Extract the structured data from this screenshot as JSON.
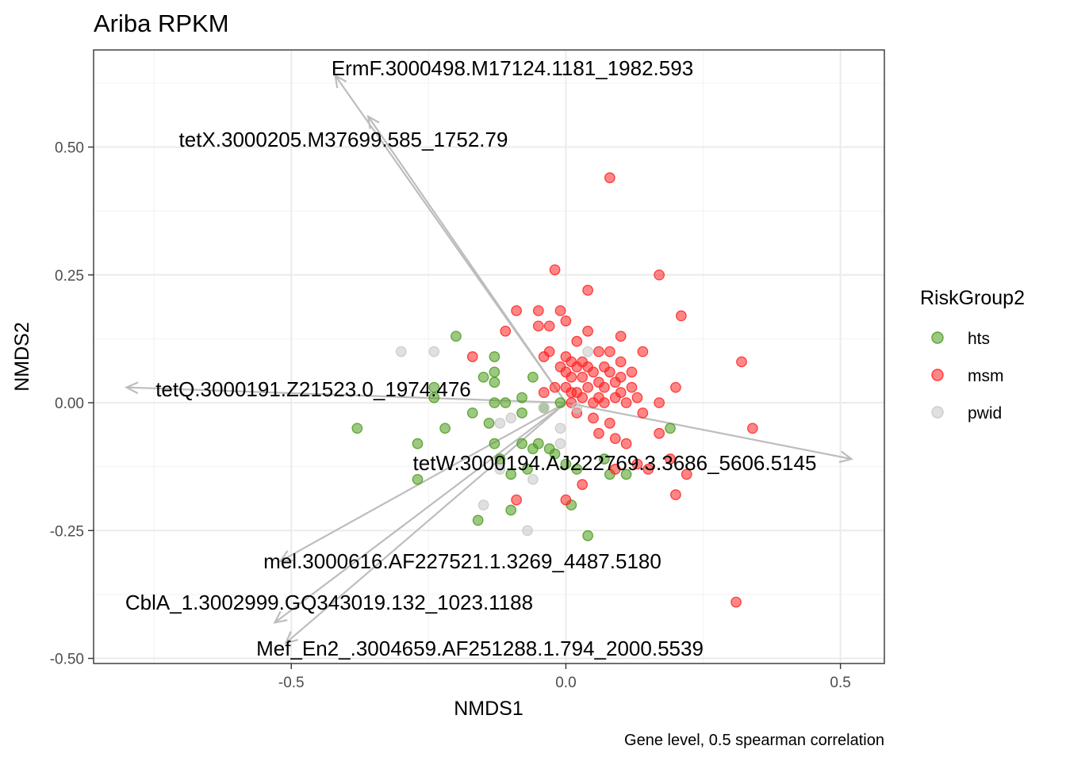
{
  "chart_data": {
    "type": "scatter",
    "title": "Ariba RPKM",
    "caption": "Gene level, 0.5 spearman correlation",
    "xlabel": "NMDS1",
    "ylabel": "NMDS2",
    "xlim": [
      -0.86,
      0.58
    ],
    "ylim": [
      -0.51,
      0.69
    ],
    "xticks": [
      -0.5,
      0.0,
      0.5
    ],
    "xtick_labels": [
      "-0.5",
      "0.0",
      "0.5"
    ],
    "yticks": [
      -0.5,
      -0.25,
      0.0,
      0.25,
      0.5
    ],
    "ytick_labels": [
      "-0.50",
      "-0.25",
      "0.00",
      "0.25",
      "0.50"
    ],
    "grid": true,
    "legend": {
      "title": "RiskGroup2",
      "position": "right",
      "entries": [
        {
          "label": "hts",
          "color": "#4a9a1b"
        },
        {
          "label": "msm",
          "color": "#ff2222"
        },
        {
          "label": "pwid",
          "color": "#c7c7c7"
        }
      ]
    },
    "series": [
      {
        "name": "hts",
        "color": "#4a9a1b",
        "points": [
          [
            -0.38,
            -0.05
          ],
          [
            -0.27,
            -0.15
          ],
          [
            -0.27,
            -0.08
          ],
          [
            -0.24,
            0.01
          ],
          [
            -0.24,
            0.03
          ],
          [
            -0.22,
            -0.05
          ],
          [
            -0.2,
            0.13
          ],
          [
            -0.17,
            -0.02
          ],
          [
            -0.16,
            -0.23
          ],
          [
            -0.15,
            0.05
          ],
          [
            -0.14,
            -0.04
          ],
          [
            -0.13,
            0.09
          ],
          [
            -0.13,
            0.06
          ],
          [
            -0.13,
            0.04
          ],
          [
            -0.13,
            0.0
          ],
          [
            -0.13,
            -0.08
          ],
          [
            -0.12,
            -0.11
          ],
          [
            -0.11,
            0.0
          ],
          [
            -0.1,
            -0.14
          ],
          [
            -0.1,
            -0.21
          ],
          [
            -0.08,
            0.01
          ],
          [
            -0.08,
            -0.02
          ],
          [
            -0.08,
            -0.08
          ],
          [
            -0.07,
            -0.13
          ],
          [
            -0.06,
            0.05
          ],
          [
            -0.06,
            -0.09
          ],
          [
            -0.05,
            -0.08
          ],
          [
            -0.04,
            -0.01
          ],
          [
            -0.03,
            -0.09
          ],
          [
            -0.02,
            -0.1
          ],
          [
            -0.01,
            0.0
          ],
          [
            0.0,
            -0.12
          ],
          [
            0.01,
            -0.2
          ],
          [
            0.02,
            -0.13
          ],
          [
            0.04,
            -0.26
          ],
          [
            0.07,
            -0.11
          ],
          [
            0.08,
            -0.14
          ],
          [
            0.11,
            -0.14
          ],
          [
            0.19,
            -0.05
          ]
        ]
      },
      {
        "name": "msm",
        "color": "#ff2222",
        "points": [
          [
            -0.17,
            0.09
          ],
          [
            -0.11,
            0.14
          ],
          [
            -0.09,
            0.18
          ],
          [
            -0.05,
            0.18
          ],
          [
            -0.05,
            0.15
          ],
          [
            -0.04,
            0.09
          ],
          [
            -0.03,
            0.15
          ],
          [
            -0.03,
            0.1
          ],
          [
            -0.02,
            0.26
          ],
          [
            -0.02,
            0.03
          ],
          [
            -0.01,
            0.18
          ],
          [
            -0.01,
            0.07
          ],
          [
            0.0,
            0.16
          ],
          [
            0.0,
            0.09
          ],
          [
            0.0,
            0.06
          ],
          [
            0.0,
            0.03
          ],
          [
            0.01,
            0.08
          ],
          [
            0.01,
            0.05
          ],
          [
            0.01,
            0.02
          ],
          [
            0.01,
            0.0
          ],
          [
            0.02,
            0.12
          ],
          [
            0.02,
            0.07
          ],
          [
            0.02,
            0.02
          ],
          [
            0.02,
            -0.02
          ],
          [
            0.03,
            0.08
          ],
          [
            0.03,
            0.05
          ],
          [
            0.03,
            0.01
          ],
          [
            0.04,
            0.22
          ],
          [
            0.04,
            0.14
          ],
          [
            0.04,
            0.07
          ],
          [
            0.04,
            0.03
          ],
          [
            0.05,
            0.06
          ],
          [
            0.05,
            0.0
          ],
          [
            0.05,
            -0.03
          ],
          [
            0.06,
            0.1
          ],
          [
            0.06,
            0.04
          ],
          [
            0.06,
            0.01
          ],
          [
            0.07,
            0.07
          ],
          [
            0.07,
            0.03
          ],
          [
            0.07,
            0.0
          ],
          [
            0.08,
            0.44
          ],
          [
            0.08,
            0.1
          ],
          [
            0.08,
            0.06
          ],
          [
            0.08,
            -0.04
          ],
          [
            0.09,
            0.04
          ],
          [
            0.09,
            0.01
          ],
          [
            0.09,
            -0.07
          ],
          [
            0.1,
            0.13
          ],
          [
            0.1,
            0.08
          ],
          [
            0.1,
            0.05
          ],
          [
            0.1,
            0.02
          ],
          [
            0.11,
            0.0
          ],
          [
            0.11,
            -0.08
          ],
          [
            0.12,
            0.06
          ],
          [
            0.12,
            0.03
          ],
          [
            0.13,
            0.01
          ],
          [
            0.13,
            -0.12
          ],
          [
            0.14,
            0.1
          ],
          [
            0.14,
            -0.02
          ],
          [
            0.17,
            0.25
          ],
          [
            0.17,
            0.0
          ],
          [
            0.17,
            -0.06
          ],
          [
            0.19,
            -0.11
          ],
          [
            0.2,
            -0.18
          ],
          [
            0.2,
            0.03
          ],
          [
            0.21,
            0.17
          ],
          [
            0.22,
            -0.14
          ],
          [
            0.31,
            -0.39
          ],
          [
            0.32,
            0.08
          ],
          [
            0.34,
            -0.05
          ],
          [
            -0.09,
            -0.19
          ],
          [
            0.0,
            -0.19
          ],
          [
            0.06,
            -0.06
          ],
          [
            0.09,
            -0.13
          ],
          [
            0.15,
            -0.13
          ],
          [
            -0.04,
            0.02
          ],
          [
            0.03,
            -0.16
          ]
        ]
      },
      {
        "name": "pwid",
        "color": "#c7c7c7",
        "points": [
          [
            -0.3,
            0.1
          ],
          [
            -0.24,
            0.1
          ],
          [
            -0.15,
            -0.2
          ],
          [
            -0.12,
            -0.04
          ],
          [
            -0.1,
            -0.03
          ],
          [
            -0.07,
            -0.25
          ],
          [
            -0.06,
            -0.15
          ],
          [
            -0.04,
            -0.01
          ],
          [
            -0.01,
            -0.05
          ],
          [
            -0.01,
            -0.08
          ],
          [
            0.04,
            0.1
          ],
          [
            -0.12,
            -0.13
          ],
          [
            0.02,
            -0.01
          ]
        ]
      }
    ],
    "vectors": [
      {
        "label": "ErmF.3000498.M17124.1181_1982.593",
        "x": -0.42,
        "y": 0.64
      },
      {
        "label": "tetX.3000205.M37699.585_1752.79",
        "x": -0.36,
        "y": 0.56
      },
      {
        "label": "tetQ.3000191.Z21523.0_1974.476",
        "x": -0.8,
        "y": 0.03
      },
      {
        "label": "tetW.3000194.AJ222769.3.3686_5606.5145",
        "x": 0.52,
        "y": -0.11
      },
      {
        "label": "mel.3000616.AF227521.1.3269_4487.5180",
        "x": -0.52,
        "y": -0.31
      },
      {
        "label": "CblA_1.3002999.GQ343019.132_1023.1188",
        "x": -0.53,
        "y": -0.43
      },
      {
        "label": "Mef_En2_.3004659.AF251288.1.794_2000.5539",
        "x": -0.51,
        "y": -0.47
      }
    ],
    "vector_color": "#bdbdbd"
  }
}
